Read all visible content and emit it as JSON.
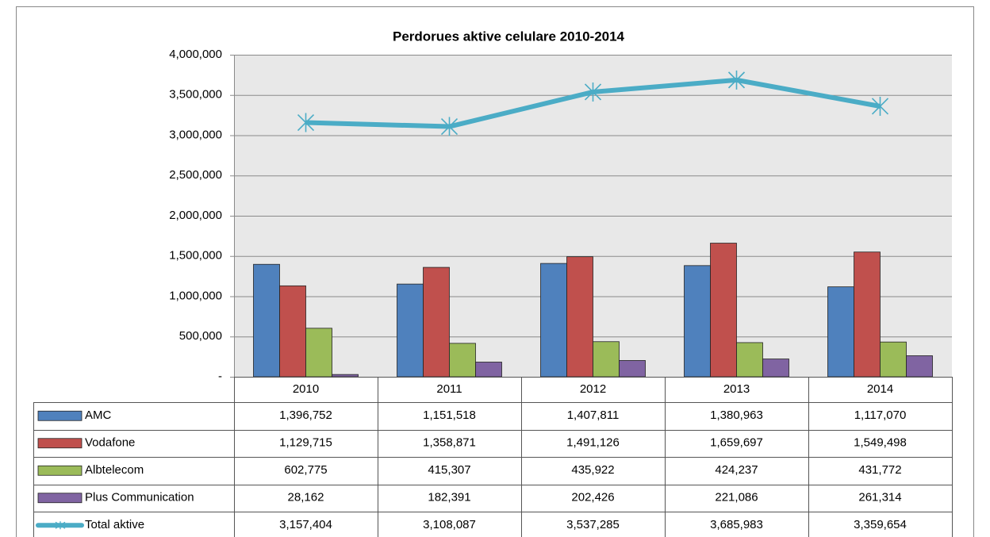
{
  "chart_data": {
    "type": "bar",
    "title": "Perdorues aktive celulare 2010-2014",
    "categories": [
      "2010",
      "2011",
      "2012",
      "2013",
      "2014"
    ],
    "ylim": [
      0,
      4000000
    ],
    "yticks": [
      {
        "value": 0,
        "label": "-"
      },
      {
        "value": 500000,
        "label": "500,000"
      },
      {
        "value": 1000000,
        "label": "1,000,000"
      },
      {
        "value": 1500000,
        "label": "1,500,000"
      },
      {
        "value": 2000000,
        "label": "2,000,000"
      },
      {
        "value": 2500000,
        "label": "2,500,000"
      },
      {
        "value": 3000000,
        "label": "3,000,000"
      },
      {
        "value": 3500000,
        "label": "3,500,000"
      },
      {
        "value": 4000000,
        "label": "4,000,000"
      }
    ],
    "grid": true,
    "series": [
      {
        "name": "AMC",
        "color": "#4f81bd",
        "values": [
          1396752,
          1151518,
          1407811,
          1380963,
          1117070
        ],
        "value_labels": [
          "1,396,752",
          "1,151,518",
          "1,407,811",
          "1,380,963",
          "1,117,070"
        ]
      },
      {
        "name": "Vodafone",
        "color": "#c0504d",
        "values": [
          1129715,
          1358871,
          1491126,
          1659697,
          1549498
        ],
        "value_labels": [
          "1,129,715",
          "1,358,871",
          "1,491,126",
          "1,659,697",
          "1,549,498"
        ]
      },
      {
        "name": "Albtelecom",
        "color": "#9bbb59",
        "values": [
          602775,
          415307,
          435922,
          424237,
          431772
        ],
        "value_labels": [
          "602,775",
          "415,307",
          "435,922",
          "424,237",
          "431,772"
        ]
      },
      {
        "name": "Plus Communication",
        "color": "#8064a2",
        "values": [
          28162,
          182391,
          202426,
          221086,
          261314
        ],
        "value_labels": [
          "28,162",
          "182,391",
          "202,426",
          "221,086",
          "261,314"
        ]
      },
      {
        "name": "Total aktive",
        "type": "line",
        "color": "#4bacc6",
        "values": [
          3157404,
          3108087,
          3537285,
          3685983,
          3359654
        ],
        "value_labels": [
          "3,157,404",
          "3,108,087",
          "3,537,285",
          "3,685,983",
          "3,359,654"
        ]
      }
    ]
  }
}
